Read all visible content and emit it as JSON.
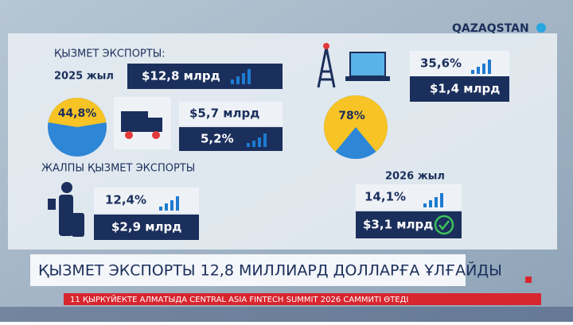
{
  "logo": "QAZAQSTAN",
  "section_title": "ҚЫЗМЕТ ЭКСПОРТЫ:",
  "year_2025": "2025 жыл",
  "total_2025": "$12,8 млрд",
  "pie_left": {
    "value": 44.8,
    "label": "44,8%"
  },
  "transport": {
    "amount": "$5,7 млрд",
    "share": "5,2%"
  },
  "total_label": "ЖАЛПЫ ҚЫЗМЕТ ЭКСПОРТЫ",
  "travel": {
    "share": "12,4%",
    "amount": "$2,9 млрд"
  },
  "telecom": {
    "share": "35,6%",
    "amount": "$1,4 млрд"
  },
  "pie_right": {
    "value": 78,
    "label": "78%"
  },
  "year_2026": "2026 жыл",
  "forecast": {
    "share": "14,1%",
    "amount": "$3,1 млрд"
  },
  "headline": "ҚЫЗМЕТ ЭКСПОРТЫ 12,8 МИЛЛИАРД ДОЛЛАРҒА ҰЛҒАЙДЫ",
  "ticker": "11 ҚЫРКҮЙЕКТЕ АЛМАТЫДА CENTRAL ASIA FINTECH SUMMIT 2026 САММИТІ ӨТЕДІ"
}
